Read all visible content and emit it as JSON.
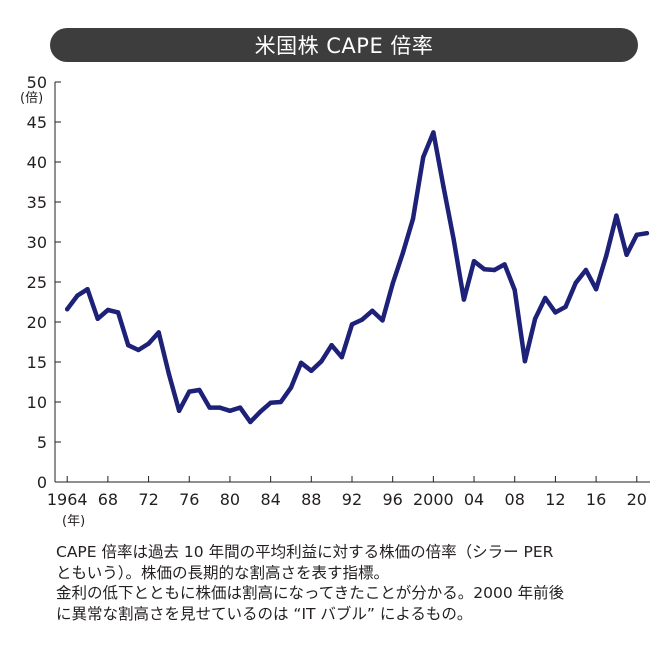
{
  "chart_data": {
    "type": "line",
    "title": "米国株 CAPE 倍率",
    "ylabel": "(倍)",
    "xlabel": "(年)",
    "ylim": [
      0,
      50
    ],
    "xlim": [
      1962.8,
      2021.3
    ],
    "yticks": [
      0,
      5,
      10,
      15,
      20,
      25,
      30,
      35,
      40,
      45,
      50
    ],
    "xticks": [
      {
        "year": 1964,
        "label": "1964"
      },
      {
        "year": 1968,
        "label": "68"
      },
      {
        "year": 1972,
        "label": "72"
      },
      {
        "year": 1976,
        "label": "76"
      },
      {
        "year": 1980,
        "label": "80"
      },
      {
        "year": 1984,
        "label": "84"
      },
      {
        "year": 1988,
        "label": "88"
      },
      {
        "year": 1992,
        "label": "92"
      },
      {
        "year": 1996,
        "label": "96"
      },
      {
        "year": 2000,
        "label": "2000"
      },
      {
        "year": 2004,
        "label": "04"
      },
      {
        "year": 2008,
        "label": "08"
      },
      {
        "year": 2012,
        "label": "12"
      },
      {
        "year": 2016,
        "label": "16"
      },
      {
        "year": 2020,
        "label": "20"
      }
    ],
    "series": [
      {
        "name": "CAPE",
        "color": "#1e2178",
        "x": [
          1964,
          1965,
          1966,
          1967,
          1968,
          1969,
          1970,
          1971,
          1972,
          1973,
          1974,
          1975,
          1976,
          1977,
          1978,
          1979,
          1980,
          1981,
          1982,
          1983,
          1984,
          1985,
          1986,
          1987,
          1988,
          1989,
          1990,
          1991,
          1992,
          1993,
          1994,
          1995,
          1996,
          1997,
          1998,
          1999,
          2000,
          2001,
          2002,
          2003,
          2004,
          2005,
          2006,
          2007,
          2008,
          2009,
          2010,
          2011,
          2012,
          2013,
          2014,
          2015,
          2016,
          2017,
          2018,
          2019,
          2020,
          2021
        ],
        "values": [
          21.6,
          23.3,
          24.1,
          20.4,
          21.5,
          21.2,
          17.1,
          16.5,
          17.3,
          18.7,
          13.5,
          8.9,
          11.3,
          11.5,
          9.3,
          9.3,
          8.9,
          9.3,
          7.5,
          8.8,
          9.9,
          10.0,
          11.8,
          14.9,
          13.9,
          15.1,
          17.1,
          15.6,
          19.7,
          20.3,
          21.4,
          20.2,
          24.8,
          28.6,
          32.9,
          40.6,
          43.7,
          36.9,
          30.3,
          22.8,
          27.6,
          26.6,
          26.5,
          27.2,
          24.0,
          15.1,
          20.4,
          23.0,
          21.2,
          21.9,
          24.9,
          26.5,
          24.1,
          28.3,
          33.3,
          28.4,
          30.9,
          31.1
        ]
      }
    ]
  },
  "caption": {
    "line1": "CAPE 倍率は過去 10 年間の平均利益に対する株価の倍率（シラー PER",
    "line2": "ともいう）。株価の長期的な割高さを表す指標。",
    "line3": "金利の低下とともに株価は割高になってきたことが分かる。2000 年前後",
    "line4": "に異常な割高さを見せているのは “IT バブル” によるもの。"
  }
}
